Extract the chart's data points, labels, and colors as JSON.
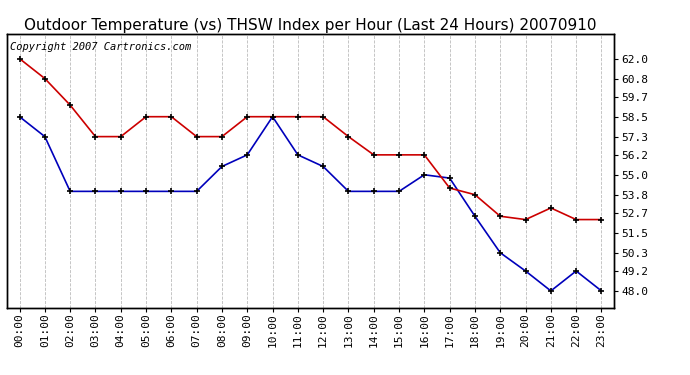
{
  "title": "Outdoor Temperature (vs) THSW Index per Hour (Last 24 Hours) 20070910",
  "copyright_text": "Copyright 2007 Cartronics.com",
  "hours": [
    "00:00",
    "01:00",
    "02:00",
    "03:00",
    "04:00",
    "05:00",
    "06:00",
    "07:00",
    "08:00",
    "09:00",
    "10:00",
    "11:00",
    "12:00",
    "13:00",
    "14:00",
    "15:00",
    "16:00",
    "17:00",
    "18:00",
    "19:00",
    "20:00",
    "21:00",
    "22:00",
    "23:00"
  ],
  "blue_data": [
    58.5,
    57.3,
    54.0,
    54.0,
    54.0,
    54.0,
    54.0,
    54.0,
    55.5,
    56.2,
    58.5,
    56.2,
    55.5,
    54.0,
    54.0,
    54.0,
    55.0,
    54.8,
    52.5,
    50.3,
    49.2,
    48.0,
    49.2,
    48.0
  ],
  "red_data": [
    62.0,
    60.8,
    59.2,
    57.3,
    57.3,
    58.5,
    58.5,
    57.3,
    57.3,
    58.5,
    58.5,
    58.5,
    58.5,
    57.3,
    56.2,
    56.2,
    56.2,
    54.2,
    53.8,
    52.5,
    52.3,
    53.0,
    52.3,
    52.3
  ],
  "ylim": [
    47.0,
    63.5
  ],
  "yticks_right": [
    48.0,
    49.2,
    50.3,
    51.5,
    52.7,
    53.8,
    55.0,
    56.2,
    57.3,
    58.5,
    59.7,
    60.8,
    62.0
  ],
  "blue_color": "#0000bb",
  "red_color": "#cc0000",
  "marker_color": "#000000",
  "bg_color": "#ffffff",
  "grid_color": "#aaaaaa",
  "title_fontsize": 11,
  "tick_fontsize": 8,
  "copyright_fontsize": 7.5
}
